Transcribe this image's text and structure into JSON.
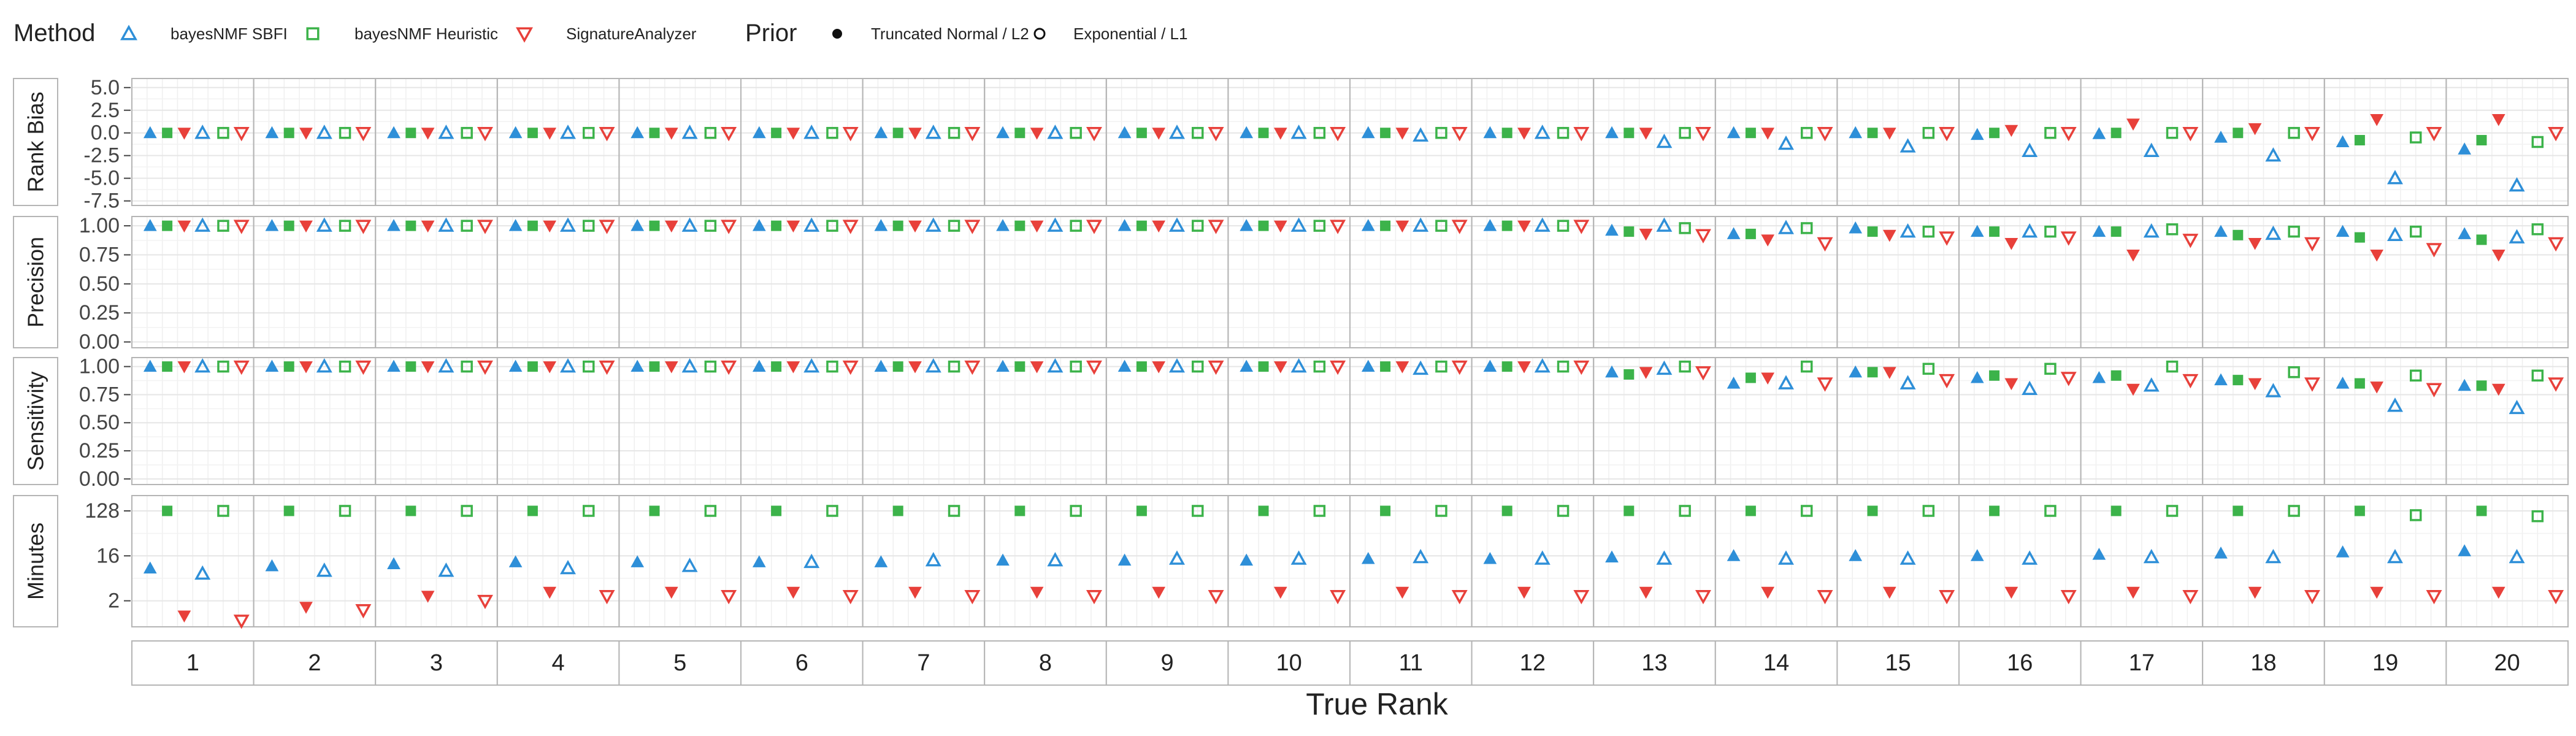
{
  "chart_data": {
    "type": "scatter",
    "xlabel": "True Rank",
    "facet_columns": [
      "1",
      "2",
      "3",
      "4",
      "5",
      "6",
      "7",
      "8",
      "9",
      "10",
      "11",
      "12",
      "13",
      "14",
      "15",
      "16",
      "17",
      "18",
      "19",
      "20"
    ],
    "legend": {
      "method_title": "Method",
      "methods": [
        {
          "name": "bayesNMF SBFI",
          "color": "#2E8FD8",
          "shape": "triangle-up"
        },
        {
          "name": "bayesNMF Heuristic",
          "color": "#3CB34A",
          "shape": "square"
        },
        {
          "name": "SignatureAnalyzer",
          "color": "#E8403A",
          "shape": "triangle-down"
        }
      ],
      "prior_title": "Prior",
      "priors": [
        {
          "name": "Truncated Normal / L2",
          "style": "filled"
        },
        {
          "name": "Exponential / L1",
          "style": "open"
        }
      ],
      "placement": "top-left"
    },
    "rows": [
      {
        "label": "Rank Bias",
        "ticks": [
          "5.0",
          "2.5",
          "0.0",
          "-2.5",
          "-5.0",
          "-7.5"
        ],
        "tick_values": [
          5,
          2.5,
          0,
          -2.5,
          -5,
          -7.5
        ],
        "ylim": [
          -8,
          6
        ],
        "series": [
          {
            "name": "bayesNMF SBFI",
            "prior": "Truncated Normal / L2",
            "values": [
              0,
              0,
              0,
              0,
              0,
              0,
              0,
              0,
              0,
              0,
              0,
              0,
              0,
              0,
              0,
              -0.2,
              -0.1,
              -0.5,
              -1.0,
              -1.8
            ]
          },
          {
            "name": "bayesNMF Heuristic",
            "prior": "Truncated Normal / L2",
            "values": [
              0,
              0,
              0,
              0,
              0,
              0,
              0,
              0,
              0,
              0,
              0,
              0,
              0,
              0,
              0,
              0,
              0,
              0,
              -0.8,
              -0.8
            ]
          },
          {
            "name": "SignatureAnalyzer",
            "prior": "Truncated Normal / L2",
            "values": [
              0,
              0,
              0,
              0,
              0,
              0,
              0,
              0,
              0,
              0,
              0,
              0,
              0,
              0,
              0,
              0.3,
              1.0,
              0.5,
              1.5,
              1.5
            ]
          },
          {
            "name": "bayesNMF SBFI",
            "prior": "Exponential / L1",
            "values": [
              0,
              0,
              0,
              0,
              0,
              0,
              0,
              0,
              0,
              0,
              -0.3,
              0,
              -1.0,
              -1.2,
              -1.5,
              -2.0,
              -2.0,
              -2.5,
              -5.0,
              -5.8
            ]
          },
          {
            "name": "bayesNMF Heuristic",
            "prior": "Exponential / L1",
            "values": [
              0,
              0,
              0,
              0,
              0,
              0,
              0,
              0,
              0,
              0,
              0,
              0,
              0,
              0,
              0,
              0,
              0,
              0,
              -0.5,
              -1.0
            ]
          },
          {
            "name": "SignatureAnalyzer",
            "prior": "Exponential / L1",
            "values": [
              0,
              0,
              0,
              0,
              0,
              0,
              0,
              0,
              0,
              0,
              0,
              0,
              0,
              0,
              0,
              0,
              0,
              0,
              0,
              0
            ]
          }
        ]
      },
      {
        "label": "Precision",
        "ticks": [
          "1.00",
          "0.75",
          "0.50",
          "0.25",
          "0.00"
        ],
        "tick_values": [
          1,
          0.75,
          0.5,
          0.25,
          0
        ],
        "ylim": [
          -0.05,
          1.08
        ],
        "series": [
          {
            "name": "bayesNMF SBFI",
            "prior": "Truncated Normal / L2",
            "values": [
              1,
              1,
              1,
              1,
              1,
              1,
              1,
              1,
              1,
              1,
              1,
              1,
              0.96,
              0.93,
              0.98,
              0.95,
              0.95,
              0.95,
              0.95,
              0.93
            ]
          },
          {
            "name": "bayesNMF Heuristic",
            "prior": "Truncated Normal / L2",
            "values": [
              1,
              1,
              1,
              1,
              1,
              1,
              1,
              1,
              1,
              1,
              1,
              1,
              0.95,
              0.93,
              0.95,
              0.95,
              0.95,
              0.92,
              0.9,
              0.88
            ]
          },
          {
            "name": "SignatureAnalyzer",
            "prior": "Truncated Normal / L2",
            "values": [
              1,
              1,
              1,
              1,
              1,
              1,
              1,
              1,
              1,
              1,
              1,
              1,
              0.93,
              0.88,
              0.92,
              0.85,
              0.75,
              0.85,
              0.75,
              0.75
            ]
          },
          {
            "name": "bayesNMF SBFI",
            "prior": "Exponential / L1",
            "values": [
              1,
              1,
              1,
              1,
              1,
              1,
              1,
              1,
              1,
              1,
              1,
              1,
              1,
              0.98,
              0.95,
              0.95,
              0.95,
              0.93,
              0.92,
              0.9
            ]
          },
          {
            "name": "bayesNMF Heuristic",
            "prior": "Exponential / L1",
            "values": [
              1,
              1,
              1,
              1,
              1,
              1,
              1,
              1,
              1,
              1,
              1,
              1,
              0.98,
              0.98,
              0.95,
              0.95,
              0.97,
              0.95,
              0.95,
              0.97
            ]
          },
          {
            "name": "SignatureAnalyzer",
            "prior": "Exponential / L1",
            "values": [
              1,
              1,
              1,
              1,
              1,
              1,
              1,
              1,
              1,
              1,
              1,
              1,
              0.92,
              0.85,
              0.9,
              0.9,
              0.88,
              0.85,
              0.8,
              0.85
            ]
          }
        ]
      },
      {
        "label": "Sensitivity",
        "ticks": [
          "1.00",
          "0.75",
          "0.50",
          "0.25",
          "0.00"
        ],
        "tick_values": [
          1,
          0.75,
          0.5,
          0.25,
          0
        ],
        "ylim": [
          -0.05,
          1.08
        ],
        "series": [
          {
            "name": "bayesNMF SBFI",
            "prior": "Truncated Normal / L2",
            "values": [
              1,
              1,
              1,
              1,
              1,
              1,
              1,
              1,
              1,
              1,
              1,
              1,
              0.95,
              0.85,
              0.95,
              0.9,
              0.9,
              0.88,
              0.85,
              0.83
            ]
          },
          {
            "name": "bayesNMF Heuristic",
            "prior": "Truncated Normal / L2",
            "values": [
              1,
              1,
              1,
              1,
              1,
              1,
              1,
              1,
              1,
              1,
              1,
              1,
              0.93,
              0.9,
              0.95,
              0.92,
              0.92,
              0.88,
              0.85,
              0.83
            ]
          },
          {
            "name": "SignatureAnalyzer",
            "prior": "Truncated Normal / L2",
            "values": [
              1,
              1,
              1,
              1,
              1,
              1,
              1,
              1,
              1,
              1,
              1,
              1,
              0.95,
              0.9,
              0.95,
              0.85,
              0.8,
              0.85,
              0.82,
              0.8
            ]
          },
          {
            "name": "bayesNMF SBFI",
            "prior": "Exponential / L1",
            "values": [
              1,
              1,
              1,
              1,
              1,
              1,
              1,
              1,
              1,
              1,
              0.98,
              1,
              0.98,
              0.85,
              0.85,
              0.8,
              0.83,
              0.78,
              0.65,
              0.63
            ]
          },
          {
            "name": "bayesNMF Heuristic",
            "prior": "Exponential / L1",
            "values": [
              1,
              1,
              1,
              1,
              1,
              1,
              1,
              1,
              1,
              1,
              1,
              1,
              1,
              1,
              0.98,
              0.98,
              1,
              0.95,
              0.92,
              0.92
            ]
          },
          {
            "name": "SignatureAnalyzer",
            "prior": "Exponential / L1",
            "values": [
              1,
              1,
              1,
              1,
              1,
              1,
              1,
              1,
              1,
              1,
              1,
              1,
              0.95,
              0.85,
              0.88,
              0.9,
              0.88,
              0.85,
              0.8,
              0.85
            ]
          }
        ]
      },
      {
        "label": "Minutes",
        "scale": "log2",
        "ticks": [
          "128",
          "16",
          "2"
        ],
        "tick_values": [
          128,
          16,
          2
        ],
        "ylim": [
          0.6,
          260
        ],
        "series": [
          {
            "name": "bayesNMF SBFI",
            "prior": "Truncated Normal / L2",
            "values": [
              9,
              10,
              11,
              12,
              12,
              12,
              12,
              13,
              13,
              13,
              14,
              14,
              15,
              16,
              16,
              16,
              17,
              18,
              19,
              20
            ]
          },
          {
            "name": "bayesNMF Heuristic",
            "prior": "Truncated Normal / L2",
            "values": [
              128,
              128,
              128,
              128,
              128,
              128,
              128,
              128,
              128,
              128,
              128,
              128,
              128,
              128,
              128,
              128,
              128,
              128,
              128,
              128
            ]
          },
          {
            "name": "SignatureAnalyzer",
            "prior": "Truncated Normal / L2",
            "values": [
              1.0,
              1.5,
              2.5,
              3,
              3,
              3,
              3,
              3,
              3,
              3,
              3,
              3,
              3,
              3,
              3,
              3,
              3,
              3,
              3,
              3
            ]
          },
          {
            "name": "bayesNMF SBFI",
            "prior": "Exponential / L1",
            "values": [
              7,
              8,
              8,
              9,
              10,
              12,
              13,
              13,
              14,
              14,
              15,
              14,
              14,
              14,
              14,
              14,
              15,
              15,
              15,
              15
            ]
          },
          {
            "name": "bayesNMF Heuristic",
            "prior": "Exponential / L1",
            "values": [
              128,
              128,
              128,
              128,
              128,
              128,
              128,
              128,
              128,
              128,
              128,
              128,
              128,
              128,
              128,
              128,
              128,
              128,
              105,
              100
            ]
          },
          {
            "name": "SignatureAnalyzer",
            "prior": "Exponential / L1",
            "values": [
              0.8,
              1.3,
              2,
              2.5,
              2.5,
              2.5,
              2.5,
              2.5,
              2.5,
              2.5,
              2.5,
              2.5,
              2.5,
              2.5,
              2.5,
              2.5,
              2.5,
              2.5,
              2.5,
              2.5
            ]
          }
        ]
      }
    ]
  }
}
